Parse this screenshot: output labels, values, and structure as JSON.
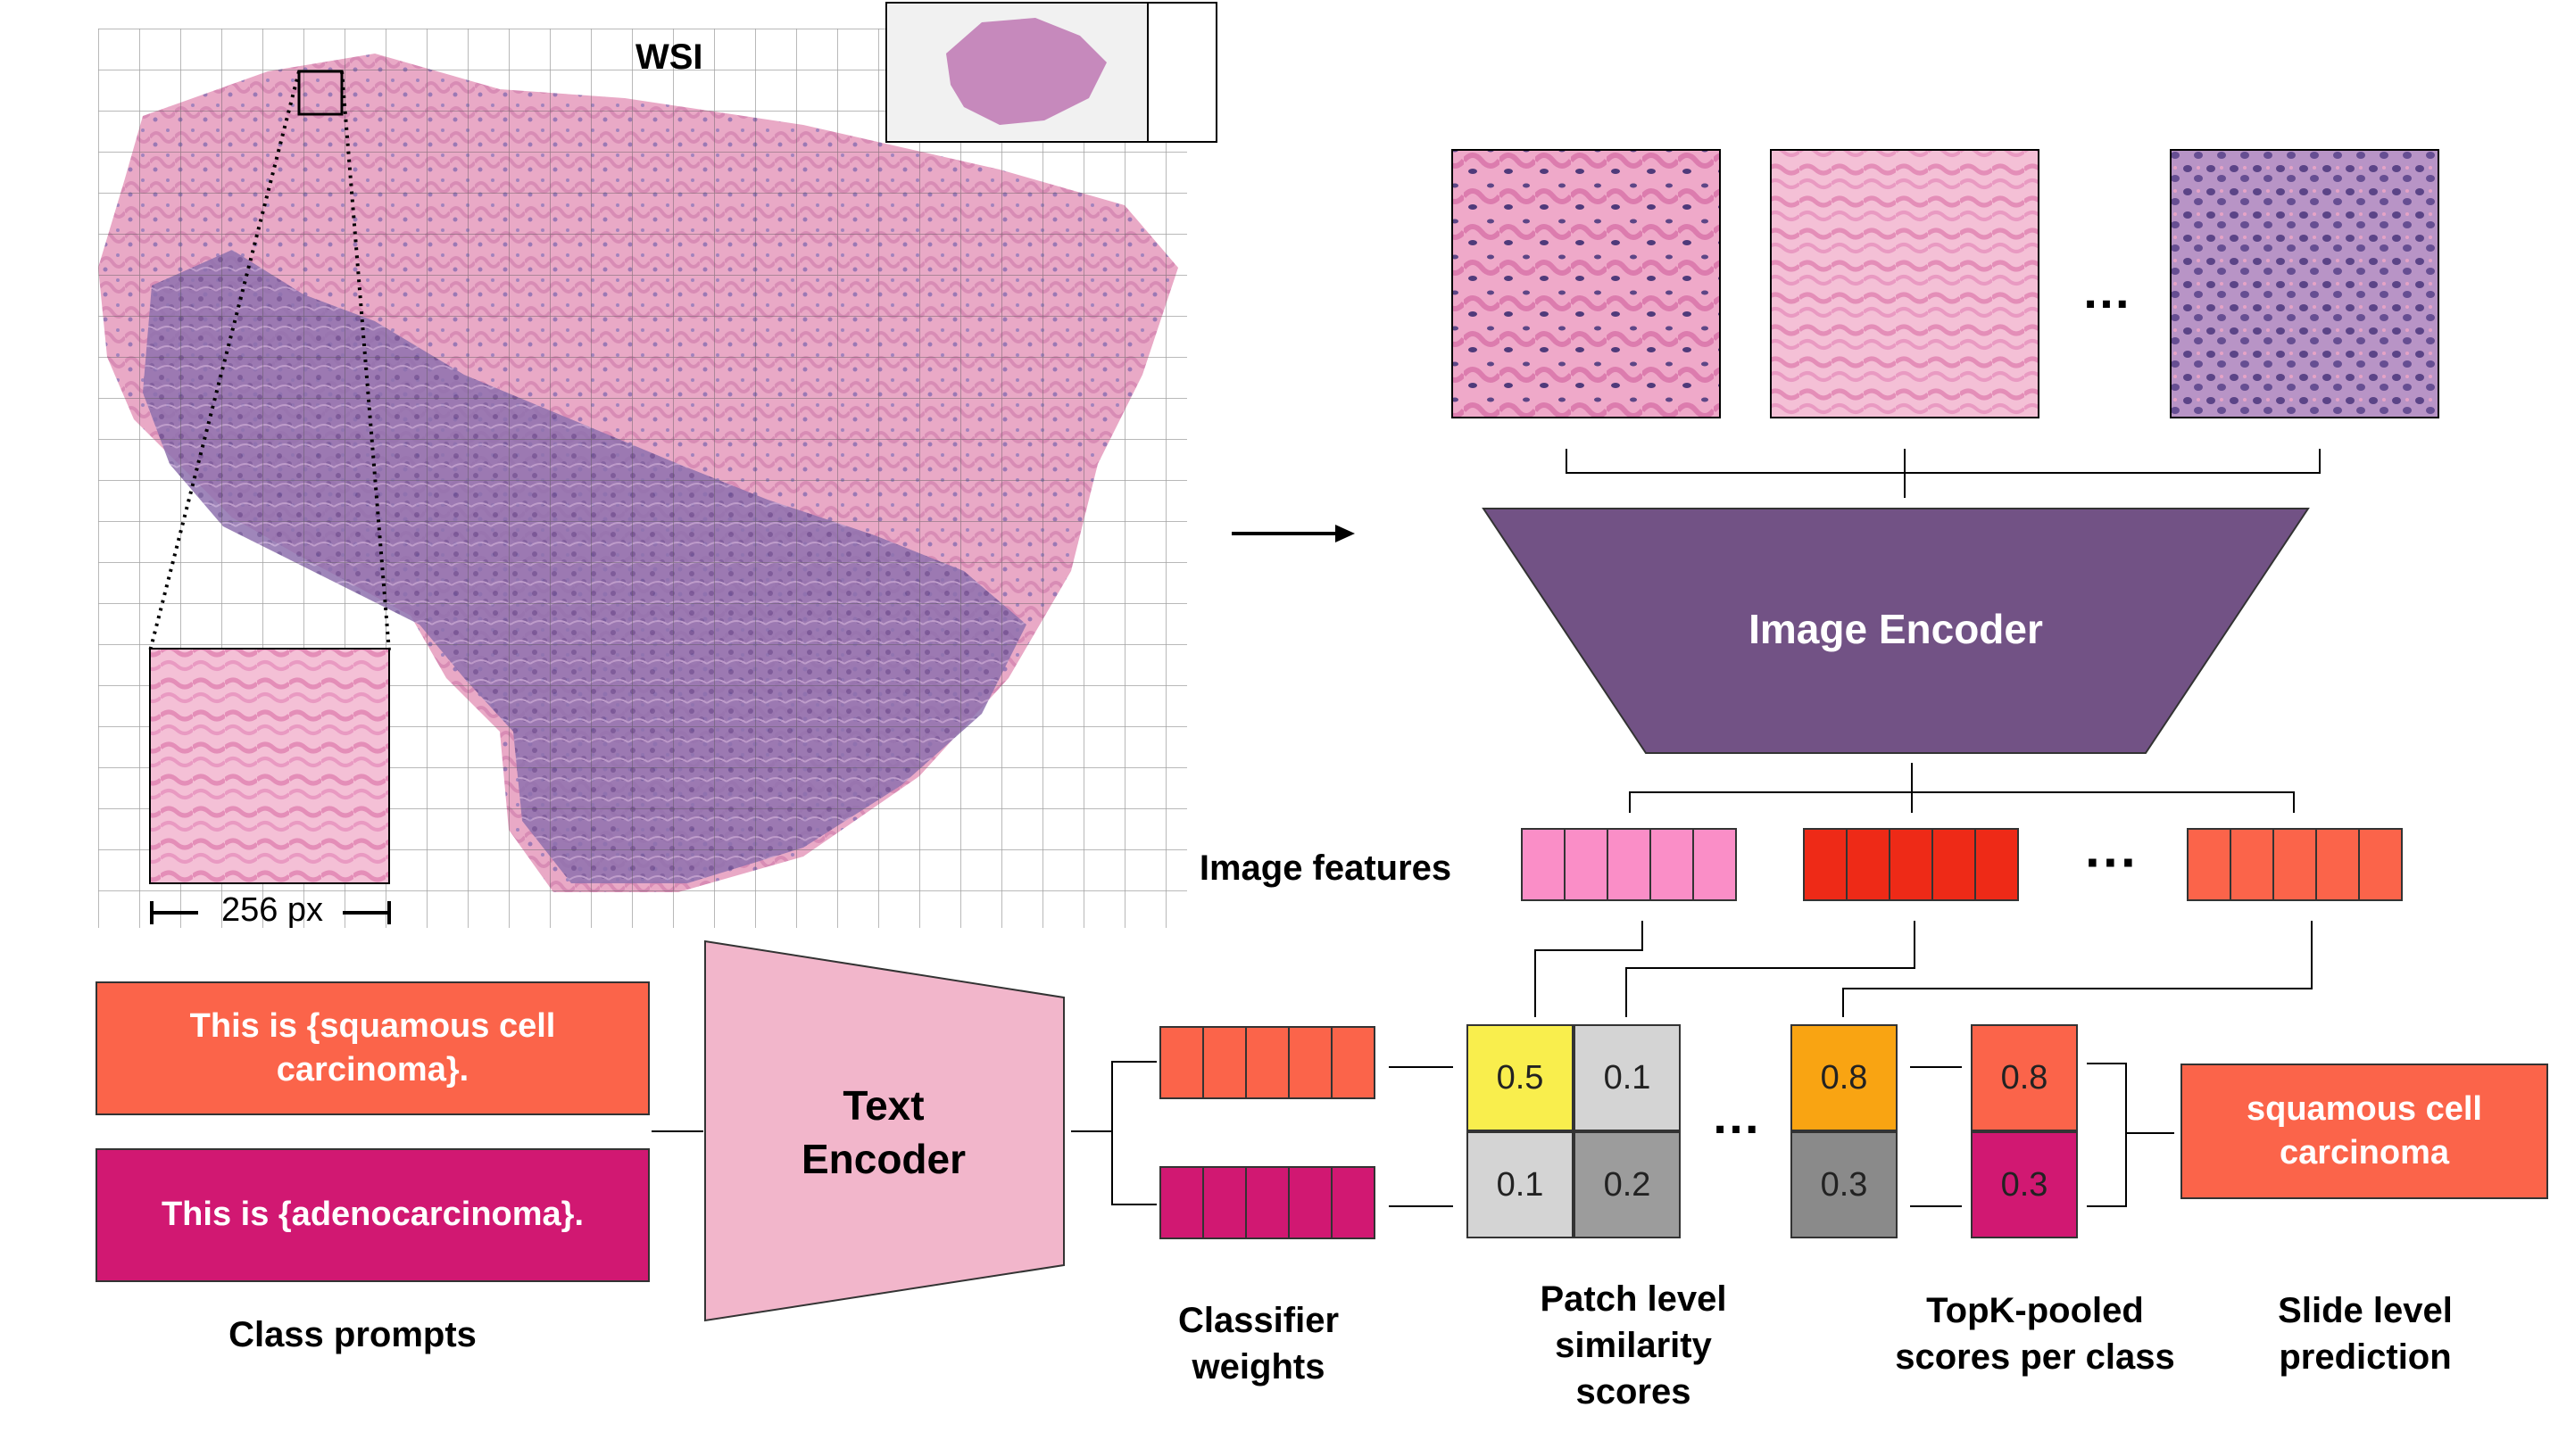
{
  "labels": {
    "wsi": "WSI",
    "scale": "256 px",
    "image_encoder": "Image Encoder",
    "image_features": "Image features",
    "text_encoder": "Text\nEncoder",
    "class_prompts": "Class prompts",
    "classifier_weights": "Classifier\nweights",
    "patch_level_similarity": "Patch level\nsimilarity\nscores",
    "topk_pooled": "TopK-pooled\nscores per class",
    "slide_level_prediction": "Slide level\nprediction",
    "ellipsis": "…",
    "ellipsis_features": "···"
  },
  "prompts": [
    {
      "text": "This is {squamous cell\ncarcinoma}.",
      "color": "#FB644A"
    },
    {
      "text": "This is {adenocarcinoma}.",
      "color": "#D11872"
    }
  ],
  "similarity": {
    "patch1": [
      [
        "0.5",
        "0.1"
      ],
      [
        "0.1",
        "0.2"
      ]
    ],
    "patchK": [
      "0.8",
      "0.3"
    ],
    "pooled": [
      "0.8",
      "0.3"
    ]
  },
  "prediction": "squamous cell\ncarcinoma",
  "colors": {
    "encoder_purple": "#725285",
    "text_encoder_pink": "#F2B6CB",
    "feature_pink": "#FA8EC7",
    "feature_red": "#EE2A17",
    "feature_coral": "#FB644A",
    "weight_coral": "#FB644A",
    "weight_magenta": "#D11872",
    "cell_yellow": "#F9EE4D",
    "cell_light_gray": "#D4D4D4",
    "cell_gray": "#9C9C9C",
    "cell_orange": "#F9A412",
    "cell_dark_gray": "#8A8A8A",
    "tissue_pink": "#E7A5C4",
    "tissue_purple": "#8C6FA8"
  },
  "icons": [
    "wsi-tissue-image",
    "thumbnail-image",
    "patch-image",
    "arrow-right-icon"
  ]
}
